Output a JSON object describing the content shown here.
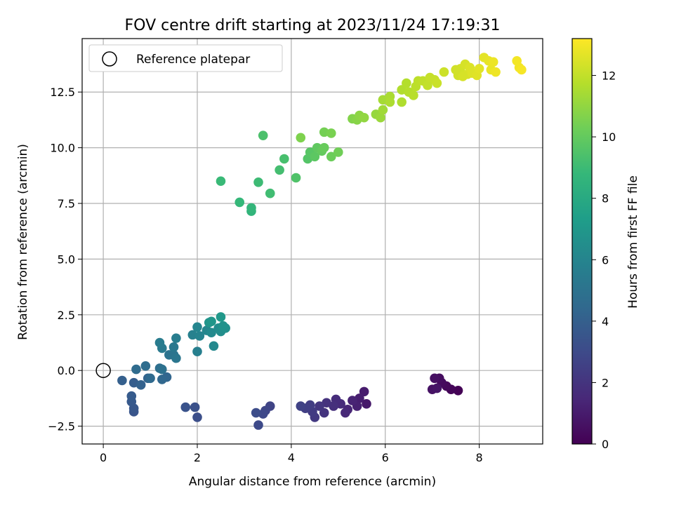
{
  "chart_data": {
    "type": "scatter",
    "title": "FOV centre drift starting at 2023/11/24 17:19:31",
    "xlabel": "Angular distance from reference (arcmin)",
    "ylabel": "Rotation from reference (arcmin)",
    "xlim": [
      -0.45,
      9.35
    ],
    "ylim": [
      -3.3,
      14.9
    ],
    "xticks": [
      0,
      2,
      4,
      6,
      8
    ],
    "xtick_labels": [
      "0",
      "2",
      "4",
      "6",
      "8"
    ],
    "yticks": [
      -2.5,
      0.0,
      2.5,
      5.0,
      7.5,
      10.0,
      12.5
    ],
    "ytick_labels": [
      "−2.5",
      "0.0",
      "2.5",
      "5.0",
      "7.5",
      "10.0",
      "12.5"
    ],
    "grid": true,
    "legend": {
      "position": "top-left",
      "entries": [
        "Reference platepar"
      ]
    },
    "reference_point": {
      "x": 0,
      "y": 0,
      "marker": "open-circle",
      "color": "#000000"
    },
    "colorbar": {
      "label": "Hours from first FF file",
      "range": [
        0,
        13.2
      ],
      "ticks": [
        0,
        2,
        4,
        6,
        8,
        10,
        12
      ],
      "tick_labels": [
        "0",
        "2",
        "4",
        "6",
        "8",
        "10",
        "12"
      ],
      "colormap": "viridis",
      "stops": [
        "#440154",
        "#482878",
        "#3e4989",
        "#31688e",
        "#26828e",
        "#1f9e89",
        "#35b779",
        "#6ece58",
        "#b5de2b",
        "#fde725"
      ]
    },
    "points": [
      [
        7.55,
        -0.9,
        0.05
      ],
      [
        7.4,
        -0.85,
        0.15
      ],
      [
        7.3,
        -0.7,
        0.25
      ],
      [
        7.2,
        -0.55,
        0.35
      ],
      [
        7.15,
        -0.35,
        0.45
      ],
      [
        7.05,
        -0.35,
        0.55
      ],
      [
        7.0,
        -0.85,
        0.65
      ],
      [
        7.1,
        -0.8,
        0.75
      ],
      [
        5.6,
        -1.5,
        0.9
      ],
      [
        5.55,
        -0.95,
        1.0
      ],
      [
        5.45,
        -1.25,
        1.1
      ],
      [
        5.4,
        -1.6,
        1.2
      ],
      [
        5.3,
        -1.35,
        1.3
      ],
      [
        5.2,
        -1.75,
        1.4
      ],
      [
        5.15,
        -1.9,
        1.5
      ],
      [
        5.05,
        -1.5,
        1.6
      ],
      [
        4.95,
        -1.3,
        1.7
      ],
      [
        4.9,
        -1.6,
        1.8
      ],
      [
        4.75,
        -1.45,
        1.9
      ],
      [
        4.7,
        -1.9,
        2.0
      ],
      [
        4.6,
        -1.6,
        2.1
      ],
      [
        4.5,
        -2.1,
        2.2
      ],
      [
        4.45,
        -1.85,
        2.3
      ],
      [
        4.4,
        -1.55,
        2.4
      ],
      [
        4.3,
        -1.7,
        2.5
      ],
      [
        4.2,
        -1.6,
        2.6
      ],
      [
        3.55,
        -1.6,
        2.7
      ],
      [
        3.45,
        -1.8,
        2.8
      ],
      [
        3.4,
        -1.95,
        2.9
      ],
      [
        3.3,
        -2.45,
        3.0
      ],
      [
        3.25,
        -1.9,
        3.1
      ],
      [
        2.0,
        -2.1,
        3.2
      ],
      [
        1.95,
        -1.65,
        3.3
      ],
      [
        1.75,
        -1.65,
        3.4
      ],
      [
        0.65,
        -1.85,
        3.5
      ],
      [
        0.65,
        -1.7,
        3.6
      ],
      [
        0.6,
        -1.4,
        3.7
      ],
      [
        0.6,
        -1.15,
        3.8
      ],
      [
        0.65,
        -0.55,
        3.9
      ],
      [
        0.4,
        -0.45,
        4.0
      ],
      [
        0.8,
        -0.65,
        4.1
      ],
      [
        0.95,
        -0.35,
        4.2
      ],
      [
        1.35,
        -0.3,
        4.3
      ],
      [
        1.25,
        -0.4,
        4.4
      ],
      [
        1.0,
        -0.35,
        4.5
      ],
      [
        0.7,
        0.05,
        4.6
      ],
      [
        0.9,
        0.2,
        4.7
      ],
      [
        1.2,
        0.1,
        4.8
      ],
      [
        1.25,
        0.05,
        4.9
      ],
      [
        1.4,
        0.7,
        5.0
      ],
      [
        1.5,
        0.7,
        5.1
      ],
      [
        1.55,
        0.55,
        5.2
      ],
      [
        1.5,
        1.05,
        5.3
      ],
      [
        1.25,
        1.0,
        5.4
      ],
      [
        1.2,
        1.25,
        5.5
      ],
      [
        1.55,
        1.45,
        5.6
      ],
      [
        2.0,
        0.85,
        5.7
      ],
      [
        1.9,
        1.6,
        5.8
      ],
      [
        2.05,
        1.55,
        5.9
      ],
      [
        2.0,
        1.95,
        6.0
      ],
      [
        2.2,
        1.8,
        6.1
      ],
      [
        2.35,
        1.1,
        6.2
      ],
      [
        2.3,
        1.7,
        6.3
      ],
      [
        2.45,
        1.9,
        6.4
      ],
      [
        2.5,
        1.75,
        6.5
      ],
      [
        2.6,
        1.9,
        6.6
      ],
      [
        2.55,
        2.0,
        6.7
      ],
      [
        2.25,
        2.15,
        6.8
      ],
      [
        2.3,
        2.2,
        6.9
      ],
      [
        2.5,
        2.4,
        7.0
      ],
      [
        3.15,
        7.15,
        8.6
      ],
      [
        3.15,
        7.3,
        8.7
      ],
      [
        2.9,
        7.55,
        8.8
      ],
      [
        2.5,
        8.5,
        8.9
      ],
      [
        3.3,
        8.45,
        9.0
      ],
      [
        3.55,
        7.95,
        9.1
      ],
      [
        3.75,
        9.0,
        9.2
      ],
      [
        3.85,
        9.5,
        9.3
      ],
      [
        3.4,
        10.55,
        9.4
      ],
      [
        4.1,
        8.65,
        9.5
      ],
      [
        4.35,
        9.5,
        9.6
      ],
      [
        4.4,
        9.8,
        9.7
      ],
      [
        4.5,
        9.6,
        9.8
      ],
      [
        4.55,
        10.0,
        9.9
      ],
      [
        4.65,
        9.85,
        10.0
      ],
      [
        4.7,
        10.0,
        10.1
      ],
      [
        4.85,
        9.6,
        10.2
      ],
      [
        5.0,
        9.8,
        10.3
      ],
      [
        4.7,
        10.7,
        10.4
      ],
      [
        4.85,
        10.65,
        10.5
      ],
      [
        4.2,
        10.45,
        10.6
      ],
      [
        5.3,
        11.3,
        10.7
      ],
      [
        5.4,
        11.25,
        10.8
      ],
      [
        5.45,
        11.45,
        10.9
      ],
      [
        5.55,
        11.35,
        11.0
      ],
      [
        5.8,
        11.5,
        11.1
      ],
      [
        5.9,
        11.35,
        11.2
      ],
      [
        5.95,
        11.7,
        11.3
      ],
      [
        5.95,
        12.15,
        11.4
      ],
      [
        6.1,
        12.3,
        11.5
      ],
      [
        6.1,
        12.05,
        11.55
      ],
      [
        6.35,
        12.05,
        11.6
      ],
      [
        6.35,
        12.6,
        11.65
      ],
      [
        6.45,
        12.9,
        11.7
      ],
      [
        6.5,
        12.5,
        11.75
      ],
      [
        6.6,
        12.35,
        11.8
      ],
      [
        6.65,
        12.75,
        11.85
      ],
      [
        6.7,
        13.0,
        11.9
      ],
      [
        6.8,
        13.0,
        11.95
      ],
      [
        6.9,
        12.8,
        12.0
      ],
      [
        6.95,
        13.15,
        12.05
      ],
      [
        7.05,
        13.05,
        12.1
      ],
      [
        7.1,
        12.9,
        12.15
      ],
      [
        7.25,
        13.4,
        12.2
      ],
      [
        7.55,
        13.25,
        12.3
      ],
      [
        7.6,
        13.55,
        12.35
      ],
      [
        7.7,
        13.75,
        12.4
      ],
      [
        7.75,
        13.3,
        12.45
      ],
      [
        7.8,
        13.6,
        12.5
      ],
      [
        7.85,
        13.35,
        12.55
      ],
      [
        7.95,
        13.25,
        12.6
      ],
      [
        8.0,
        13.55,
        12.65
      ],
      [
        8.1,
        14.05,
        12.7
      ],
      [
        8.2,
        13.9,
        12.75
      ],
      [
        8.25,
        13.5,
        12.8
      ],
      [
        8.3,
        13.85,
        12.85
      ],
      [
        8.35,
        13.4,
        12.9
      ],
      [
        8.85,
        13.6,
        12.95
      ],
      [
        8.8,
        13.9,
        13.0
      ],
      [
        8.9,
        13.5,
        13.05
      ],
      [
        7.65,
        13.2,
        12.4
      ],
      [
        7.5,
        13.5,
        12.3
      ]
    ]
  }
}
